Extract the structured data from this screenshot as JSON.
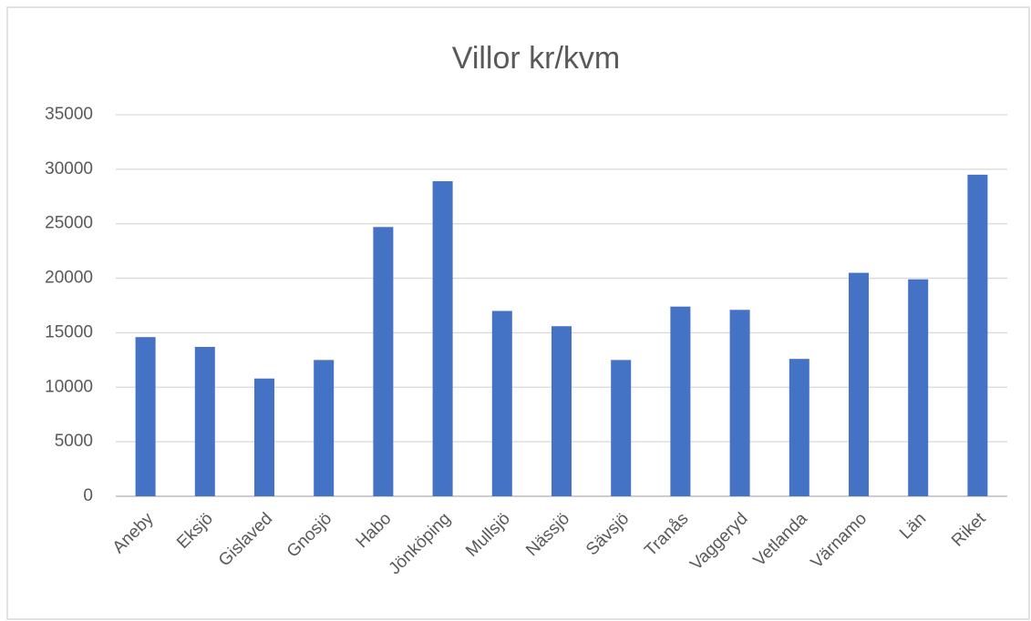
{
  "chart_data": {
    "type": "bar",
    "title": "Villor kr/kvm",
    "categories": [
      "Aneby",
      "Eksjö",
      "Gislaved",
      "Gnosjö",
      "Habo",
      "Jönköping",
      "Mullsjö",
      "Nässjö",
      "Sävsjö",
      "Tranås",
      "Vaggeryd",
      "Vetlanda",
      "Värnamo",
      "Län",
      "Riket"
    ],
    "values": [
      14600,
      13700,
      10800,
      12500,
      24700,
      28900,
      17000,
      15600,
      12500,
      17400,
      17100,
      12600,
      20500,
      19900,
      29500
    ],
    "color": "#4472c4",
    "ylim": [
      0,
      35000
    ],
    "yticks": [
      0,
      5000,
      10000,
      15000,
      20000,
      25000,
      30000,
      35000
    ],
    "grid": true
  }
}
